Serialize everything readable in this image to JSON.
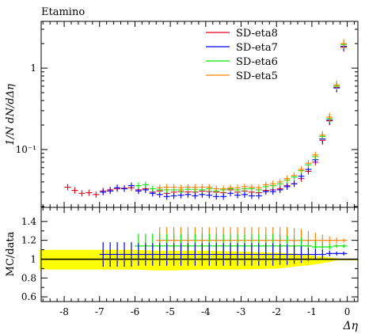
{
  "chart_data": [
    {
      "type": "scatter",
      "title": "Etamino",
      "ylabel": "1/N dN/dΔη",
      "yscale": "log",
      "ylim": [
        0.0195,
        3.75
      ],
      "xlim": [
        -8.65,
        0.3
      ],
      "grid": false,
      "legend_position": "top-right",
      "y_tick_labels": [
        "1",
        "10⁻¹"
      ],
      "series": [
        {
          "name": "SD-eta8",
          "color": "#e6001a",
          "x": [
            -7.9,
            -7.7,
            -7.5,
            -7.3,
            -7.1,
            -6.9,
            -6.7,
            -6.5,
            -6.3,
            -6.1,
            -5.9,
            -5.7,
            -5.5,
            -5.3,
            -5.1,
            -4.9,
            -4.7,
            -4.5,
            -4.3,
            -4.1,
            -3.9,
            -3.7,
            -3.5,
            -3.3,
            -3.1,
            -2.9,
            -2.7,
            -2.5,
            -2.3,
            -2.1,
            -1.9,
            -1.7,
            -1.5,
            -1.3,
            -1.1,
            -0.9,
            -0.7,
            -0.5,
            -0.3,
            -0.1
          ],
          "y": [
            0.0345,
            0.0315,
            0.029,
            0.0295,
            0.028,
            0.031,
            0.032,
            0.033,
            0.0335,
            0.034,
            0.032,
            0.033,
            0.03,
            0.031,
            0.029,
            0.03,
            0.0305,
            0.0302,
            0.03,
            0.0308,
            0.0305,
            0.03,
            0.0295,
            0.032,
            0.03,
            0.031,
            0.03,
            0.0295,
            0.0315,
            0.032,
            0.033,
            0.036,
            0.038,
            0.044,
            0.054,
            0.07,
            0.13,
            0.225,
            0.58,
            1.8
          ]
        },
        {
          "name": "SD-eta7",
          "color": "#0000ff",
          "x": [
            -6.9,
            -6.7,
            -6.5,
            -6.3,
            -6.1,
            -5.9,
            -5.7,
            -5.5,
            -5.3,
            -5.1,
            -4.9,
            -4.7,
            -4.5,
            -4.3,
            -4.1,
            -3.9,
            -3.7,
            -3.5,
            -3.3,
            -3.1,
            -2.9,
            -2.7,
            -2.5,
            -2.3,
            -2.1,
            -1.9,
            -1.7,
            -1.5,
            -1.3,
            -1.1,
            -0.9,
            -0.7,
            -0.5,
            -0.3,
            -0.1
          ],
          "y": [
            0.03,
            0.031,
            0.034,
            0.033,
            0.036,
            0.031,
            0.032,
            0.029,
            0.028,
            0.0265,
            0.027,
            0.0275,
            0.028,
            0.027,
            0.028,
            0.0275,
            0.0265,
            0.0265,
            0.029,
            0.0275,
            0.028,
            0.027,
            0.027,
            0.0305,
            0.0305,
            0.032,
            0.035,
            0.038,
            0.047,
            0.057,
            0.075,
            0.135,
            0.23,
            0.57,
            1.85
          ]
        },
        {
          "name": "SD-eta6",
          "color": "#00e600",
          "x": [
            -5.9,
            -5.7,
            -5.5,
            -5.3,
            -5.1,
            -4.9,
            -4.7,
            -4.5,
            -4.3,
            -4.1,
            -3.9,
            -3.7,
            -3.5,
            -3.3,
            -3.1,
            -2.9,
            -2.7,
            -2.5,
            -2.3,
            -2.1,
            -1.9,
            -1.7,
            -1.5,
            -1.3,
            -1.1,
            -0.9,
            -0.7,
            -0.5,
            -0.3,
            -0.1
          ],
          "y": [
            0.036,
            0.037,
            0.033,
            0.032,
            0.032,
            0.032,
            0.032,
            0.0325,
            0.0325,
            0.032,
            0.033,
            0.031,
            0.032,
            0.033,
            0.032,
            0.033,
            0.033,
            0.032,
            0.035,
            0.036,
            0.038,
            0.042,
            0.046,
            0.055,
            0.065,
            0.082,
            0.145,
            0.24,
            0.6,
            1.95
          ]
        },
        {
          "name": "SD-eta5",
          "color": "#ff8000",
          "x": [
            -5.3,
            -5.1,
            -4.9,
            -4.7,
            -4.5,
            -4.3,
            -4.1,
            -3.9,
            -3.7,
            -3.5,
            -3.3,
            -3.1,
            -2.9,
            -2.7,
            -2.5,
            -2.3,
            -2.1,
            -1.9,
            -1.7,
            -1.5,
            -1.3,
            -1.1,
            -0.9,
            -0.7,
            -0.5,
            -0.3,
            -0.1
          ],
          "y": [
            0.034,
            0.0345,
            0.0345,
            0.034,
            0.0345,
            0.0345,
            0.0345,
            0.0345,
            0.033,
            0.033,
            0.034,
            0.034,
            0.035,
            0.0345,
            0.034,
            0.037,
            0.038,
            0.04,
            0.044,
            0.048,
            0.057,
            0.068,
            0.086,
            0.15,
            0.25,
            0.62,
            2.0
          ]
        }
      ]
    },
    {
      "type": "scatter",
      "ylabel": "MC/data",
      "xlabel": "Δη",
      "ylim": [
        0.55,
        1.55
      ],
      "xlim": [
        -8.65,
        0.3
      ],
      "grid": false,
      "y_ticks": [
        0.6,
        0.8,
        1,
        1.2,
        1.4
      ],
      "y_tick_labels": [
        "0.6",
        "0.8",
        "1",
        "1.2",
        "1.4"
      ],
      "x_ticks": [
        -8,
        -7,
        -6,
        -5,
        -4,
        -3,
        -2,
        -1,
        0
      ],
      "x_tick_labels": [
        "-8",
        "-7",
        "-6",
        "-5",
        "-4",
        "-3",
        "-2",
        "-1",
        "0"
      ],
      "reference_line": 1,
      "data_uncertainty_band": {
        "color": "#ffff00",
        "x": [
          -8.7,
          -8.0,
          -7.0,
          -6.0,
          -5.4,
          -5.0,
          -4.0,
          -3.0,
          -2.0,
          -1.5,
          -1.0,
          -0.5,
          -0.2,
          0.0
        ],
        "upper": [
          1.1,
          1.1,
          1.1,
          1.1,
          1.09,
          1.09,
          1.09,
          1.08,
          1.07,
          1.06,
          1.04,
          1.02,
          1.005,
          1.0
        ],
        "lower": [
          0.89,
          0.89,
          0.89,
          0.89,
          0.88,
          0.88,
          0.89,
          0.89,
          0.9,
          0.92,
          0.94,
          0.97,
          0.995,
          1.0
        ]
      },
      "series": [
        {
          "name": "SD-eta5",
          "color": "#ff8000",
          "x": [
            -5.3,
            -5.1,
            -4.9,
            -4.7,
            -4.5,
            -4.3,
            -4.1,
            -3.9,
            -3.7,
            -3.5,
            -3.3,
            -3.1,
            -2.9,
            -2.7,
            -2.5,
            -2.3,
            -2.1,
            -1.9,
            -1.7,
            -1.5,
            -1.3,
            -1.1,
            -0.9,
            -0.7,
            -0.5,
            -0.3,
            -0.1
          ],
          "y": [
            1.2,
            1.2,
            1.2,
            1.2,
            1.2,
            1.2,
            1.2,
            1.2,
            1.2,
            1.2,
            1.2,
            1.2,
            1.2,
            1.2,
            1.2,
            1.2,
            1.2,
            1.2,
            1.2,
            1.2,
            1.2,
            1.2,
            1.2,
            1.2,
            1.2,
            1.2,
            1.2
          ],
          "err": [
            0.14,
            0.14,
            0.14,
            0.14,
            0.14,
            0.14,
            0.14,
            0.14,
            0.14,
            0.14,
            0.14,
            0.14,
            0.14,
            0.14,
            0.14,
            0.14,
            0.14,
            0.14,
            0.14,
            0.13,
            0.12,
            0.1,
            0.08,
            0.06,
            0.04,
            0.03,
            0.02
          ]
        },
        {
          "name": "SD-eta6",
          "color": "#00e600",
          "x": [
            -5.9,
            -5.7,
            -5.5,
            -5.3,
            -5.1,
            -4.9,
            -4.7,
            -4.5,
            -4.3,
            -4.1,
            -3.9,
            -3.7,
            -3.5,
            -3.3,
            -3.1,
            -2.9,
            -2.7,
            -2.5,
            -2.3,
            -2.1,
            -1.9,
            -1.7,
            -1.5,
            -1.3,
            -1.1,
            -0.9,
            -0.7,
            -0.5,
            -0.3,
            -0.1
          ],
          "y": [
            1.14,
            1.14,
            1.14,
            1.14,
            1.14,
            1.14,
            1.14,
            1.14,
            1.14,
            1.14,
            1.14,
            1.14,
            1.14,
            1.14,
            1.14,
            1.14,
            1.14,
            1.14,
            1.14,
            1.14,
            1.14,
            1.14,
            1.14,
            1.14,
            1.14,
            1.13,
            1.13,
            1.13,
            1.14,
            1.14
          ],
          "err": [
            0.13,
            0.13,
            0.13,
            0.13,
            0.13,
            0.13,
            0.13,
            0.13,
            0.13,
            0.13,
            0.13,
            0.13,
            0.13,
            0.13,
            0.13,
            0.13,
            0.13,
            0.13,
            0.13,
            0.13,
            0.12,
            0.11,
            0.1,
            0.09,
            0.07,
            0.06,
            0.05,
            0.03,
            0.02,
            0.02
          ]
        },
        {
          "name": "SD-eta7",
          "color": "#0000ff",
          "x": [
            -6.9,
            -6.7,
            -6.5,
            -6.3,
            -6.1,
            -5.9,
            -5.7,
            -5.5,
            -5.3,
            -5.1,
            -4.9,
            -4.7,
            -4.5,
            -4.3,
            -4.1,
            -3.9,
            -3.7,
            -3.5,
            -3.3,
            -3.1,
            -2.9,
            -2.7,
            -2.5,
            -2.3,
            -2.1,
            -1.9,
            -1.7,
            -1.5,
            -1.3,
            -1.1,
            -0.9,
            -0.7,
            -0.5,
            -0.3,
            -0.1
          ],
          "y": [
            1.05,
            1.05,
            1.05,
            1.05,
            1.05,
            1.05,
            1.05,
            1.05,
            1.05,
            1.05,
            1.05,
            1.05,
            1.05,
            1.05,
            1.05,
            1.05,
            1.05,
            1.05,
            1.05,
            1.05,
            1.05,
            1.05,
            1.05,
            1.05,
            1.05,
            1.05,
            1.05,
            1.05,
            1.05,
            1.05,
            1.05,
            1.05,
            1.06,
            1.06,
            1.06
          ],
          "err": [
            0.13,
            0.13,
            0.13,
            0.13,
            0.13,
            0.12,
            0.12,
            0.12,
            0.12,
            0.12,
            0.12,
            0.12,
            0.12,
            0.12,
            0.12,
            0.12,
            0.12,
            0.12,
            0.12,
            0.12,
            0.12,
            0.12,
            0.12,
            0.12,
            0.12,
            0.11,
            0.11,
            0.1,
            0.09,
            0.07,
            0.06,
            0.05,
            0.03,
            0.02,
            0.02
          ]
        }
      ]
    }
  ]
}
